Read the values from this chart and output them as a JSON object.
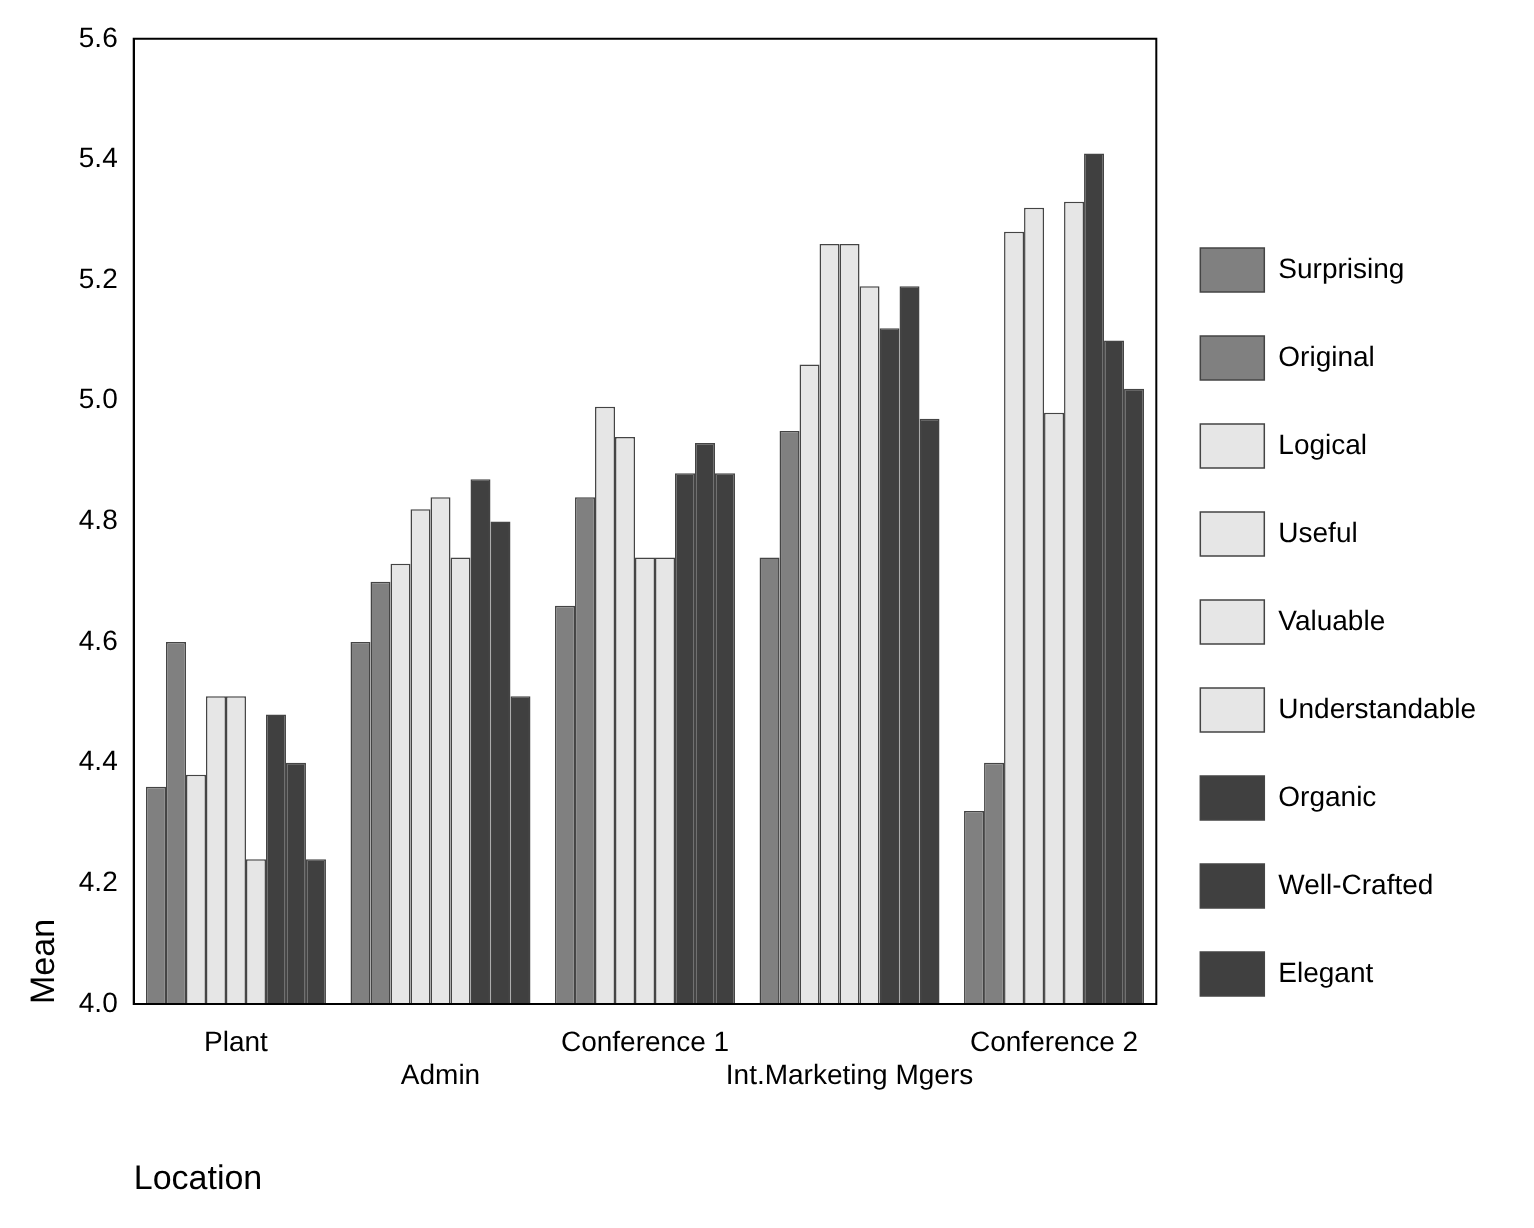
{
  "chart_data": {
    "type": "bar",
    "xlabel": "Location",
    "ylabel": "Mean",
    "categories": [
      "Plant",
      "Admin",
      "Conference 1",
      "Int.Marketing Mgers",
      "Conference 2"
    ],
    "series": [
      {
        "name": "Surprising",
        "color": "#808080",
        "values": [
          4.36,
          4.6,
          4.66,
          4.74,
          4.32
        ]
      },
      {
        "name": "Original",
        "color": "#808080",
        "values": [
          4.6,
          4.7,
          4.84,
          4.95,
          4.4
        ]
      },
      {
        "name": "Logical",
        "color": "#e6e6e6",
        "values": [
          4.38,
          4.73,
          4.99,
          5.06,
          5.28
        ]
      },
      {
        "name": "Useful",
        "color": "#e6e6e6",
        "values": [
          4.51,
          4.82,
          4.94,
          5.26,
          5.32
        ]
      },
      {
        "name": "Valuable",
        "color": "#e6e6e6",
        "values": [
          4.51,
          4.84,
          4.74,
          5.26,
          4.98
        ]
      },
      {
        "name": "Understandable",
        "color": "#e6e6e6",
        "values": [
          4.24,
          4.74,
          4.74,
          5.19,
          5.33
        ]
      },
      {
        "name": "Organic",
        "color": "#404040",
        "values": [
          4.48,
          4.87,
          4.88,
          5.12,
          5.41
        ]
      },
      {
        "name": "Well-Crafted",
        "color": "#404040",
        "values": [
          4.4,
          4.8,
          4.93,
          5.19,
          5.1
        ]
      },
      {
        "name": "Elegant",
        "color": "#404040",
        "values": [
          4.24,
          4.51,
          4.88,
          4.97,
          5.02
        ]
      }
    ],
    "ylim": [
      4.0,
      5.6
    ],
    "yticks": [
      {
        "value": 4,
        "label": "4.0"
      },
      4.2,
      4.4,
      4.6,
      4.8,
      {
        "value": 5,
        "label": "5.0"
      },
      5.2,
      5.4,
      5.6
    ],
    "grid": false,
    "legend": "right"
  }
}
